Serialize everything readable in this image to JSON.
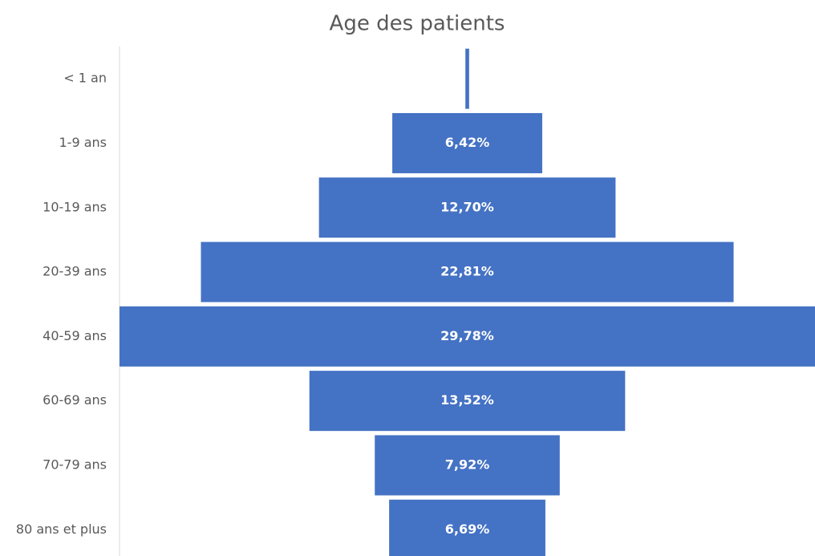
{
  "chart_data": {
    "type": "funnel",
    "title": "Age des patients",
    "categories": [
      "< 1 an",
      "1-9 ans",
      "10-19 ans",
      "20-39 ans",
      "40-59 ans",
      "60-69 ans",
      "70-79 ans",
      "80 ans et plus"
    ],
    "values": [
      0.16,
      6.42,
      12.7,
      22.81,
      29.78,
      13.52,
      7.92,
      6.69
    ],
    "value_labels": [
      null,
      "6,42%",
      "12,70%",
      "22,81%",
      "29,78%",
      "13,52%",
      "7,92%",
      "6,69%"
    ],
    "color": "#4472c4"
  }
}
